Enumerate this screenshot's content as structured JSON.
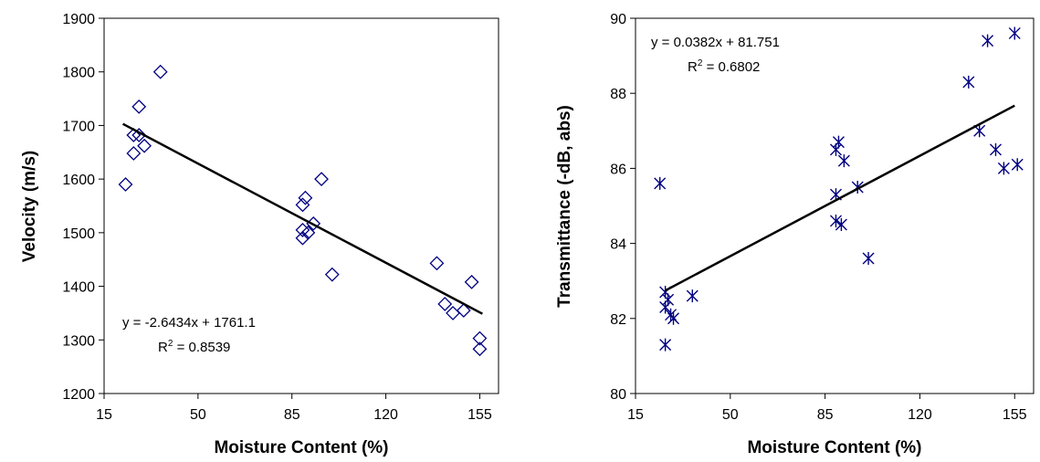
{
  "colors": {
    "marker": "#000080",
    "trendline": "#000000",
    "axis": "#000000"
  },
  "chart_data": [
    {
      "type": "scatter",
      "marker": "diamond",
      "xlabel": "Moisture Content (%)",
      "ylabel": "Velocity (m/s)",
      "xlim": [
        15,
        162
      ],
      "ylim": [
        1200,
        1900
      ],
      "xticks": [
        15,
        50,
        85,
        120,
        155
      ],
      "yticks": [
        1200,
        1300,
        1400,
        1500,
        1600,
        1700,
        1800,
        1900
      ],
      "points": [
        [
          23,
          1590
        ],
        [
          26,
          1648
        ],
        [
          26,
          1682
        ],
        [
          28,
          1735
        ],
        [
          28,
          1682
        ],
        [
          30,
          1662
        ],
        [
          36,
          1800
        ],
        [
          89,
          1552
        ],
        [
          89,
          1505
        ],
        [
          89,
          1490
        ],
        [
          90,
          1565
        ],
        [
          91,
          1500
        ],
        [
          93,
          1517
        ],
        [
          96,
          1600
        ],
        [
          100,
          1422
        ],
        [
          139,
          1443
        ],
        [
          142,
          1367
        ],
        [
          145,
          1350
        ],
        [
          149,
          1355
        ],
        [
          152,
          1408
        ],
        [
          155,
          1303
        ],
        [
          155,
          1283
        ]
      ],
      "trendline": {
        "slope": -2.6434,
        "intercept": 1761.1,
        "x_range": [
          22,
          156
        ]
      },
      "equation": "y = -2.6434x + 1761.1",
      "r2_label": "R",
      "r2_sup": "2",
      "r2_value": " = 0.8539"
    },
    {
      "type": "scatter",
      "marker": "asterisk",
      "xlabel": "Moisture Content (%)",
      "ylabel": "Transmittance (-dB, abs)",
      "xlim": [
        15,
        162
      ],
      "ylim": [
        80,
        90
      ],
      "xticks": [
        15,
        50,
        85,
        120,
        155
      ],
      "yticks": [
        80,
        82,
        84,
        86,
        88,
        90
      ],
      "points": [
        [
          24,
          85.6
        ],
        [
          26,
          81.3
        ],
        [
          26,
          82.7
        ],
        [
          26,
          82.3
        ],
        [
          27,
          82.5
        ],
        [
          28,
          82.1
        ],
        [
          29,
          82.0
        ],
        [
          36,
          82.6
        ],
        [
          89,
          85.3
        ],
        [
          89,
          84.6
        ],
        [
          89,
          86.5
        ],
        [
          90,
          86.7
        ],
        [
          91,
          84.5
        ],
        [
          92,
          86.2
        ],
        [
          97,
          85.5
        ],
        [
          101,
          83.6
        ],
        [
          138,
          88.3
        ],
        [
          142,
          87.0
        ],
        [
          145,
          89.4
        ],
        [
          148,
          86.5
        ],
        [
          151,
          86.0
        ],
        [
          155,
          89.6
        ],
        [
          156,
          86.1
        ]
      ],
      "trendline": {
        "slope": 0.0382,
        "intercept": 81.751,
        "x_range": [
          26,
          155
        ]
      },
      "equation": "y = 0.0382x + 81.751",
      "r2_label": "R",
      "r2_sup": "2",
      "r2_value": " = 0.6802"
    }
  ]
}
